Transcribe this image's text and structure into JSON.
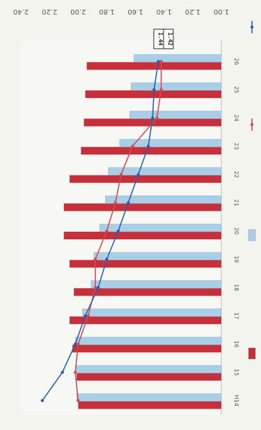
{
  "chart_data": {
    "type": "bar",
    "orientation": "rotated-90",
    "categories": [
      "H14",
      "15",
      "16",
      "17",
      "18",
      "19",
      "20",
      "21",
      "22",
      "23",
      "24",
      "25",
      "26"
    ],
    "series": [
      {
        "name": "",
        "kind": "bar",
        "color": "#c7303a",
        "values": [
          2.0,
          2.01,
          2.04,
          2.06,
          2.03,
          2.06,
          2.1,
          2.1,
          2.06,
          1.98,
          1.96,
          1.95,
          1.94
        ]
      },
      {
        "name": "",
        "kind": "bar",
        "color": "#a9cfe6",
        "values": [
          2.01,
          2.02,
          2.02,
          1.97,
          1.91,
          1.89,
          1.85,
          1.81,
          1.79,
          1.71,
          1.64,
          1.63,
          1.61
        ]
      },
      {
        "name": "",
        "kind": "line",
        "color": "#d24a52",
        "values": [
          2.0,
          2.02,
          2.0,
          1.93,
          1.88,
          1.88,
          1.8,
          1.74,
          1.7,
          1.62,
          1.45,
          1.42,
          1.42
        ]
      },
      {
        "name": "",
        "kind": "line",
        "color": "#2a5fae",
        "values": [
          2.25,
          2.11,
          2.02,
          1.95,
          1.86,
          1.8,
          1.72,
          1.65,
          1.58,
          1.51,
          1.48,
          1.47,
          1.44
        ]
      }
    ],
    "ylim": [
      1.0,
      2.4
    ],
    "yticks": [
      "2.40",
      "2.20",
      "2.00",
      "1.80",
      "1.60",
      "1.40",
      "1.20",
      "1.00"
    ],
    "unit_label": "",
    "annotations": [
      "1.44",
      "1.42"
    ],
    "grid": false,
    "legend_position": "bottom"
  }
}
